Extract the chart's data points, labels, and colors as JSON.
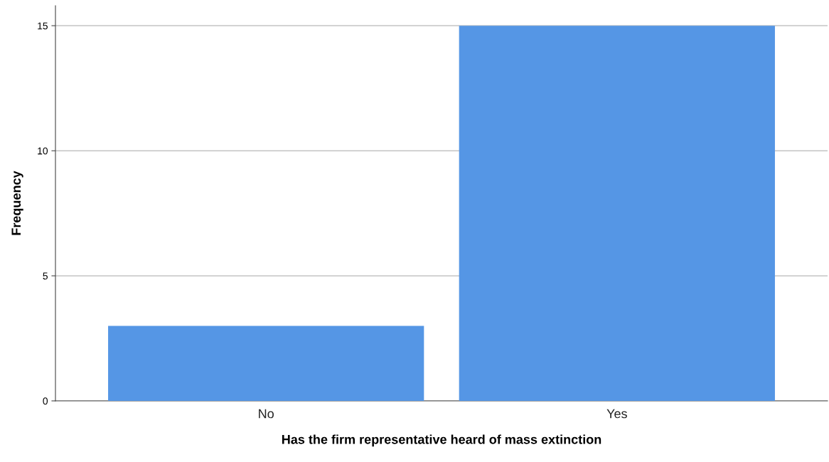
{
  "chart_data": {
    "type": "bar",
    "xlabel": "Has the firm representative heard of mass extinction",
    "ylabel": "Frequency",
    "categories": [
      "No",
      "Yes"
    ],
    "values": [
      3,
      15
    ],
    "color": "#5596e5",
    "ylim": [
      0,
      15.8
    ],
    "yticks": [
      0,
      5,
      10,
      15
    ],
    "grid": "y",
    "legend": false
  }
}
